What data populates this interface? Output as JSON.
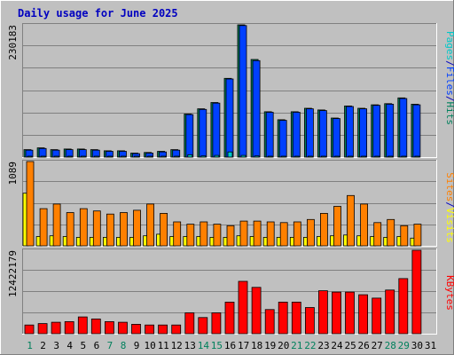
{
  "colors": {
    "background": "#C0C0C0",
    "frame_light": "#FFFFFF",
    "frame_dark": "#808080",
    "grid": "#808080",
    "title": "#0000C0",
    "axis_text": "#000000",
    "weekend_text": "#00805C",
    "hits": "#00805C",
    "files": "#0040FF",
    "pages": "#00C8C8",
    "sites": "#FF8000",
    "visits": "#FFFF00",
    "kbytes": "#FF0000",
    "separator": "#0000C0"
  },
  "chart_data": {
    "type": "bar",
    "title": "Daily usage for June 2025",
    "categories": [
      "1",
      "2",
      "3",
      "4",
      "5",
      "6",
      "7",
      "8",
      "9",
      "10",
      "11",
      "12",
      "13",
      "14",
      "15",
      "16",
      "17",
      "18",
      "19",
      "20",
      "21",
      "22",
      "23",
      "24",
      "25",
      "26",
      "27",
      "28",
      "29",
      "30",
      "31"
    ],
    "weekend_days": [
      "1",
      "7",
      "8",
      "14",
      "15",
      "21",
      "22",
      "28",
      "29"
    ],
    "panels": [
      {
        "name": "hits-files-pages",
        "ymax_label": "230183",
        "ylim": [
          0,
          230183
        ],
        "legend": [
          "Pages",
          "/",
          "Files",
          "/",
          "Hits"
        ],
        "legend_colors": [
          "pages",
          "separator",
          "files",
          "separator",
          "hits"
        ],
        "series": [
          {
            "name": "Hits",
            "color": "hits",
            "values": [
              13000,
              16000,
              13000,
              14000,
              14000,
              13000,
              11000,
              11000,
              7000,
              8000,
              10000,
              13000,
              75000,
              84000,
              95000,
              137000,
              230183,
              170000,
              79000,
              65000,
              79000,
              85000,
              82000,
              68000,
              89000,
              85000,
              91000,
              93000,
              103000,
              92000,
              0
            ]
          },
          {
            "name": "Files",
            "color": "files",
            "values": [
              12000,
              15000,
              12000,
              13000,
              13000,
              12000,
              10000,
              10000,
              6000,
              7000,
              9000,
              12000,
              74000,
              83000,
              94000,
              136000,
              229000,
              168000,
              78000,
              64000,
              78000,
              84000,
              81000,
              67000,
              88000,
              84000,
              90000,
              92000,
              102000,
              91000,
              0
            ]
          },
          {
            "name": "Pages",
            "color": "pages",
            "values": [
              1000,
              1000,
              1000,
              1000,
              1000,
              1000,
              800,
              800,
              700,
              700,
              800,
              900,
              4000,
              2000,
              3000,
              9000,
              3000,
              2000,
              1000,
              1000,
              1000,
              1000,
              1000,
              1000,
              1000,
              1000,
              1000,
              1000,
              1000,
              1000,
              0
            ]
          }
        ]
      },
      {
        "name": "visits-sites",
        "ymax_label": "1089",
        "ylim": [
          0,
          1089
        ],
        "legend": [
          "Sites",
          "/",
          "Visits"
        ],
        "legend_colors": [
          "sites",
          "separator",
          "visits"
        ],
        "series": [
          {
            "name": "Visits",
            "color": "visits",
            "values": [
              680,
              120,
              130,
              120,
              110,
              110,
              110,
              110,
              110,
              130,
              150,
              120,
              120,
              120,
              110,
              110,
              130,
              120,
              110,
              110,
              110,
              110,
              120,
              130,
              140,
              130,
              120,
              110,
              120,
              100,
              0
            ]
          },
          {
            "name": "Sites",
            "color": "sites",
            "values": [
              1089,
              480,
              540,
              430,
              480,
              450,
              410,
              430,
              460,
              540,
              420,
              310,
              280,
              310,
              280,
              260,
              320,
              320,
              310,
              300,
              310,
              340,
              420,
              510,
              650,
              540,
              300,
              340,
              260,
              280,
              0
            ]
          }
        ]
      },
      {
        "name": "kbytes",
        "ymax_label": "12422179",
        "ylim": [
          0,
          12422179
        ],
        "legend": [
          "KBytes"
        ],
        "legend_colors": [
          "kbytes"
        ],
        "series": [
          {
            "name": "KBytes",
            "color": "kbytes",
            "values": [
              1300000,
              1500000,
              1700000,
              1800000,
              2500000,
              2200000,
              1800000,
              1700000,
              1400000,
              1300000,
              1300000,
              1300000,
              3100000,
              2400000,
              3100000,
              4700000,
              7800000,
              6900000,
              3600000,
              4700000,
              4700000,
              3900000,
              6400000,
              6200000,
              6200000,
              5800000,
              5300000,
              6500000,
              8200000,
              12422179,
              0
            ]
          }
        ]
      }
    ]
  }
}
